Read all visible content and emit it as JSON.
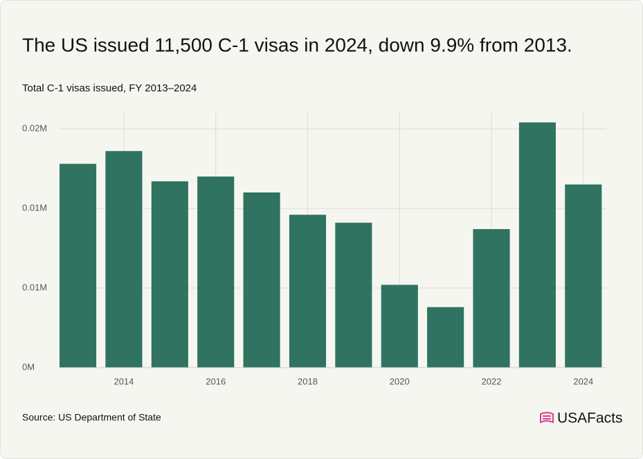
{
  "chart_data": {
    "type": "bar",
    "title": "The US issued 11,500 C-1 visas in 2024, down 9.9% from 2013.",
    "subtitle": "Total C-1 visas issued, FY 2013–2024",
    "source": "Source: US Department of State",
    "brand": "USAFacts",
    "x": [
      2013,
      2014,
      2015,
      2016,
      2017,
      2018,
      2019,
      2020,
      2021,
      2022,
      2023,
      2024
    ],
    "values": [
      12800,
      13600,
      11700,
      12000,
      11000,
      9600,
      9100,
      5200,
      3800,
      8700,
      15400,
      11500
    ],
    "color": "#2f7360",
    "xlim": [
      2012.6,
      2024.5
    ],
    "xticks": [
      2014,
      2016,
      2018,
      2020,
      2022,
      2024
    ],
    "ylim": [
      0,
      16000
    ],
    "yticks": [
      {
        "value": 0,
        "label": "0M"
      },
      {
        "value": 5000,
        "label": "0.01M"
      },
      {
        "value": 10000,
        "label": "0.01M"
      },
      {
        "value": 15000,
        "label": "0.02M"
      }
    ],
    "grid": true
  }
}
